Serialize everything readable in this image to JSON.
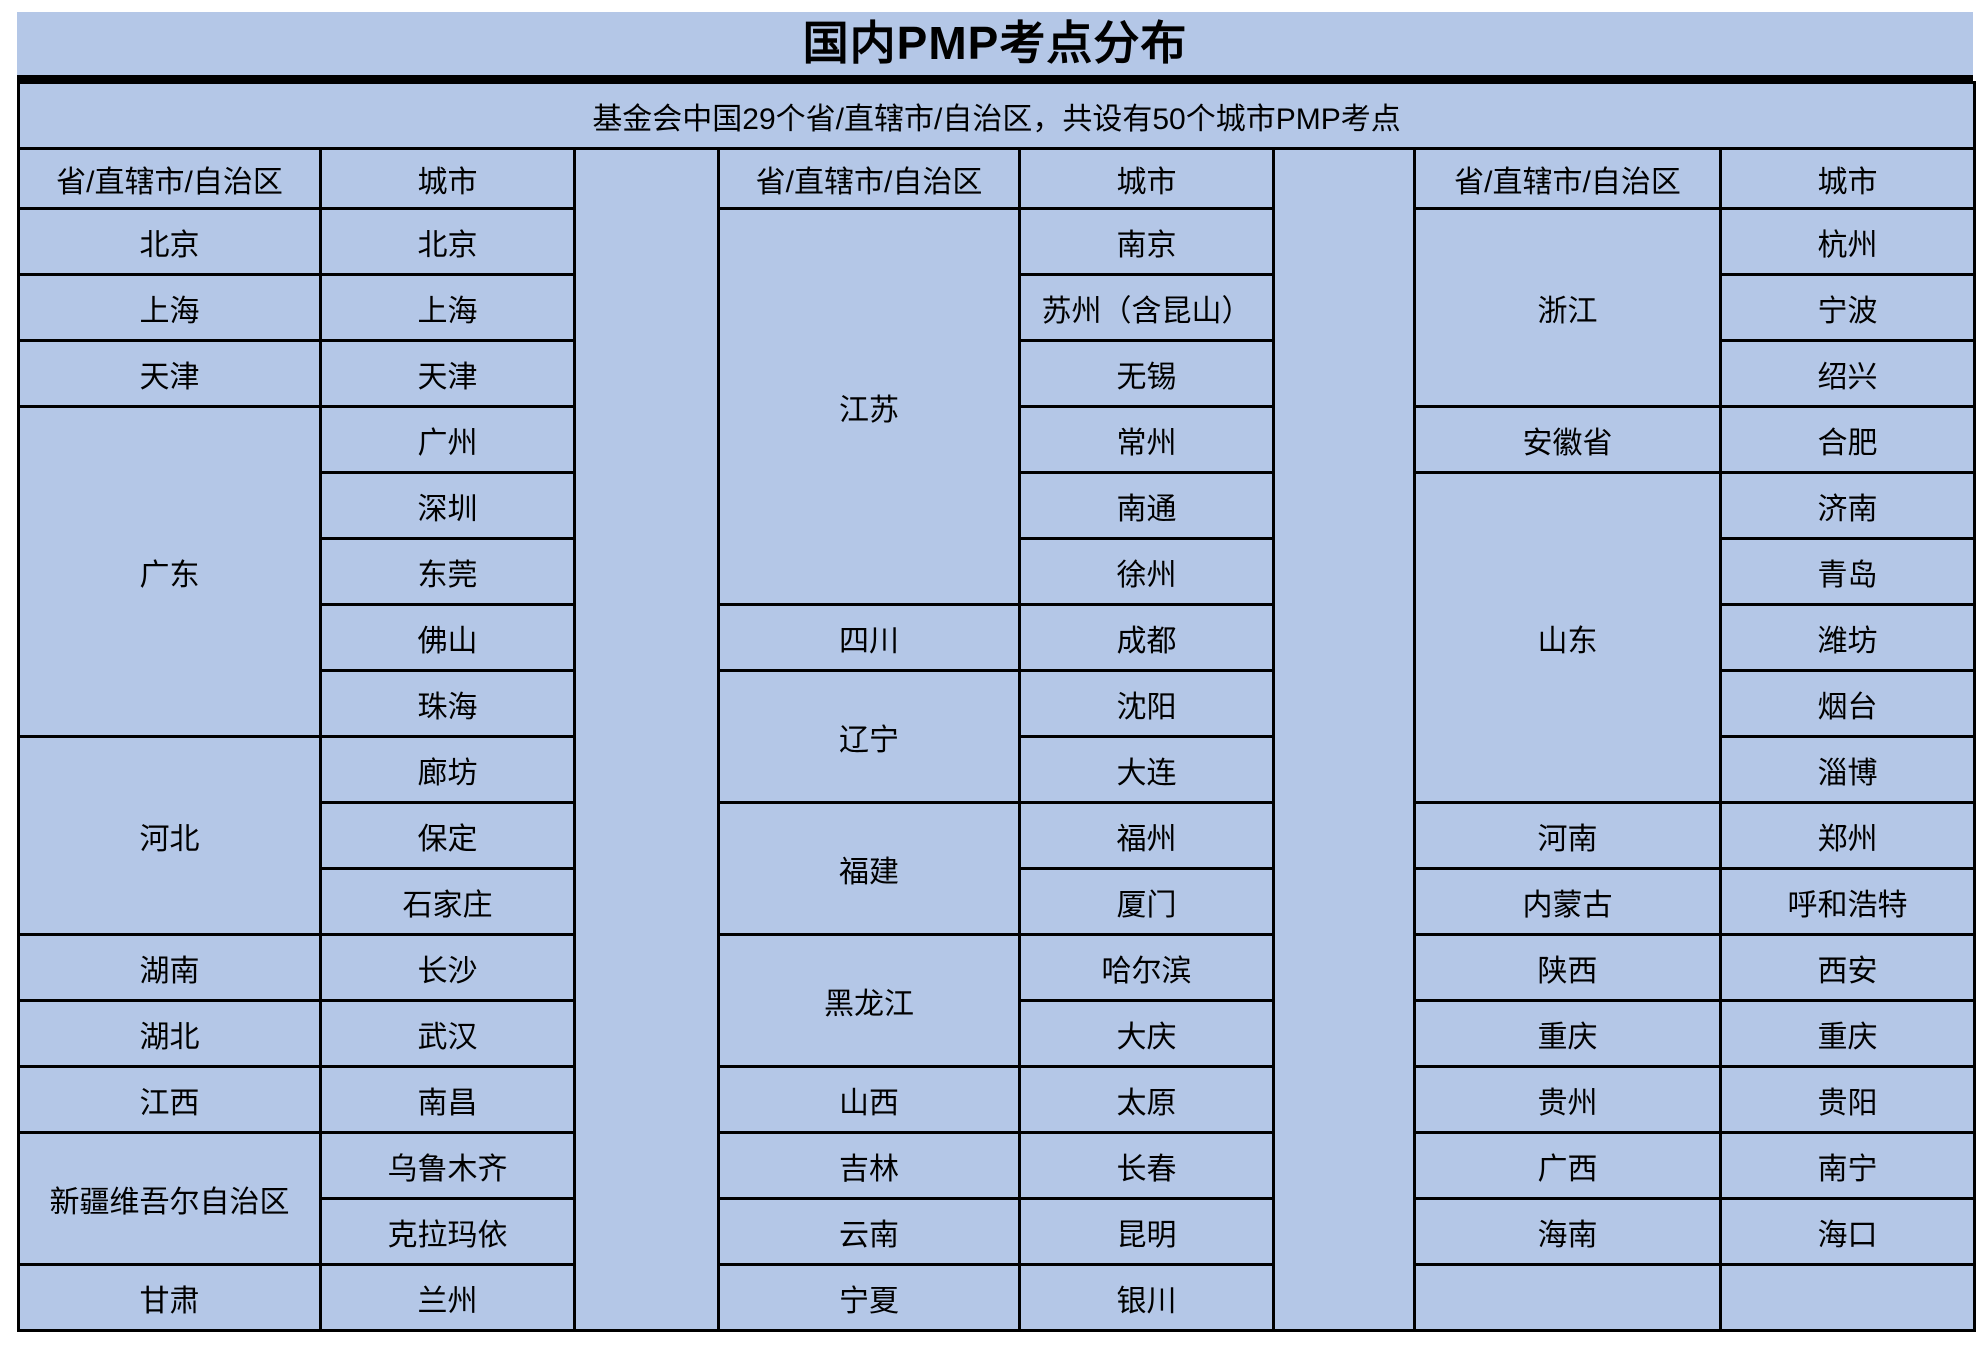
{
  "title": "国内PMP考点分布",
  "subtitle": "基金会中国29个省/直辖市/自治区，共设有50个城市PMP考点",
  "columns": {
    "province_header": "省/直辖市/自治区",
    "city_header": "城市"
  },
  "colors": {
    "cell_bg": "#B4C7E7",
    "border": "#000000",
    "text": "#000000",
    "page_bg": "#FFFFFF"
  },
  "groups": [
    {
      "provinces": [
        {
          "name": "北京",
          "cities": [
            "北京"
          ]
        },
        {
          "name": "上海",
          "cities": [
            "上海"
          ]
        },
        {
          "name": "天津",
          "cities": [
            "天津"
          ]
        },
        {
          "name": "广东",
          "cities": [
            "广州",
            "深圳",
            "东莞",
            "佛山",
            "珠海"
          ]
        },
        {
          "name": "河北",
          "cities": [
            "廊坊",
            "保定",
            "石家庄"
          ]
        },
        {
          "name": "湖南",
          "cities": [
            "长沙"
          ]
        },
        {
          "name": "湖北",
          "cities": [
            "武汉"
          ]
        },
        {
          "name": "江西",
          "cities": [
            "南昌"
          ]
        },
        {
          "name": "新疆维吾尔自治区",
          "cities": [
            "乌鲁木齐",
            "克拉玛依"
          ]
        },
        {
          "name": "甘肃",
          "cities": [
            "兰州"
          ]
        }
      ]
    },
    {
      "provinces": [
        {
          "name": "江苏",
          "cities": [
            "南京",
            "苏州（含昆山）",
            "无锡",
            "常州",
            "南通",
            "徐州"
          ]
        },
        {
          "name": "四川",
          "cities": [
            "成都"
          ]
        },
        {
          "name": "辽宁",
          "cities": [
            "沈阳",
            "大连"
          ]
        },
        {
          "name": "福建",
          "cities": [
            "福州",
            "厦门"
          ]
        },
        {
          "name": "黑龙江",
          "cities": [
            "哈尔滨",
            "大庆"
          ]
        },
        {
          "name": "山西",
          "cities": [
            "太原"
          ]
        },
        {
          "name": "吉林",
          "cities": [
            "长春"
          ]
        },
        {
          "name": "云南",
          "cities": [
            "昆明"
          ]
        },
        {
          "name": "宁夏",
          "cities": [
            "银川"
          ]
        }
      ]
    },
    {
      "provinces": [
        {
          "name": "浙江",
          "cities": [
            "杭州",
            "宁波",
            "绍兴"
          ]
        },
        {
          "name": "安徽省",
          "cities": [
            "合肥"
          ]
        },
        {
          "name": "山东",
          "cities": [
            "济南",
            "青岛",
            "潍坊",
            "烟台",
            "淄博"
          ]
        },
        {
          "name": "河南",
          "cities": [
            "郑州"
          ]
        },
        {
          "name": "内蒙古",
          "cities": [
            "呼和浩特"
          ]
        },
        {
          "name": "陕西",
          "cities": [
            "西安"
          ]
        },
        {
          "name": "重庆",
          "cities": [
            "重庆"
          ]
        },
        {
          "name": "贵州",
          "cities": [
            "贵阳"
          ]
        },
        {
          "name": "广西",
          "cities": [
            "南宁"
          ]
        },
        {
          "name": "海南",
          "cities": [
            "海口"
          ]
        }
      ]
    }
  ]
}
